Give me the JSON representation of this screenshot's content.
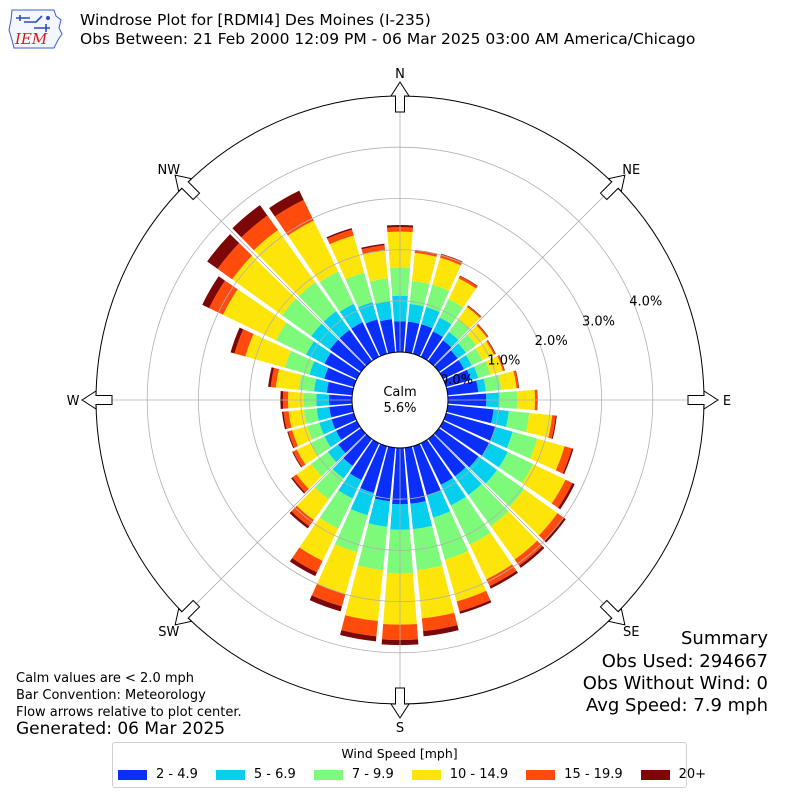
{
  "header": {
    "title_line1": "Windrose Plot for [RDMI4] Des Moines (I-235)",
    "title_line2": "Obs Between: 21 Feb 2000 12:09 PM - 06 Mar 2025 03:00 AM America/Chicago",
    "logo_text": "IEM"
  },
  "chart_data": {
    "type": "windrose",
    "directions": [
      "N",
      "NE",
      "E",
      "SE",
      "S",
      "SW",
      "W",
      "NW"
    ],
    "radial_ticks": [
      "0.0%",
      "1.0%",
      "2.0%",
      "3.0%",
      "4.0%"
    ],
    "radial_max_pct": 5.0,
    "grid": true,
    "calm_label": "Calm",
    "calm_value": "5.6%",
    "bin_labels": [
      "2 - 4.9",
      "5 - 6.9",
      "7 - 9.9",
      "10 - 14.9",
      "15 - 19.9",
      "20+"
    ],
    "bin_colors": [
      "#0a2ffa",
      "#05cfee",
      "#7dfa7a",
      "#fde50a",
      "#ff4b0c",
      "#7d0606"
    ],
    "sectors": [
      {
        "dir_deg": 0,
        "cumulative_pct": [
          0.6,
          1.1,
          1.65,
          2.35,
          2.44,
          2.48
        ]
      },
      {
        "dir_deg": 10,
        "cumulative_pct": [
          0.6,
          0.95,
          1.4,
          1.95,
          2.0,
          2.01
        ]
      },
      {
        "dir_deg": 20,
        "cumulative_pct": [
          0.6,
          0.95,
          1.4,
          1.95,
          2.02,
          2.03
        ]
      },
      {
        "dir_deg": 30,
        "cumulative_pct": [
          0.55,
          0.85,
          1.25,
          1.7,
          1.75,
          1.76
        ]
      },
      {
        "dir_deg": 40,
        "cumulative_pct": [
          0.5,
          0.7,
          1.0,
          1.3,
          1.33,
          1.34
        ]
      },
      {
        "dir_deg": 50,
        "cumulative_pct": [
          0.45,
          0.65,
          0.9,
          1.15,
          1.18,
          1.19
        ]
      },
      {
        "dir_deg": 60,
        "cumulative_pct": [
          0.45,
          0.62,
          0.85,
          1.1,
          1.13,
          1.14
        ]
      },
      {
        "dir_deg": 70,
        "cumulative_pct": [
          0.5,
          0.65,
          0.9,
          1.15,
          1.18,
          1.19
        ]
      },
      {
        "dir_deg": 80,
        "cumulative_pct": [
          0.6,
          0.75,
          1.05,
          1.35,
          1.39,
          1.4
        ]
      },
      {
        "dir_deg": 90,
        "cumulative_pct": [
          0.75,
          1.0,
          1.35,
          1.7,
          1.74,
          1.75
        ]
      },
      {
        "dir_deg": 100,
        "cumulative_pct": [
          0.9,
          1.2,
          1.6,
          2.05,
          2.12,
          2.14
        ]
      },
      {
        "dir_deg": 110,
        "cumulative_pct": [
          1.0,
          1.35,
          1.85,
          2.4,
          2.55,
          2.58
        ]
      },
      {
        "dir_deg": 120,
        "cumulative_pct": [
          1.0,
          1.4,
          1.95,
          2.65,
          2.8,
          2.85
        ]
      },
      {
        "dir_deg": 130,
        "cumulative_pct": [
          0.95,
          1.4,
          2.05,
          2.85,
          3.0,
          3.05
        ]
      },
      {
        "dir_deg": 140,
        "cumulative_pct": [
          0.9,
          1.35,
          2.1,
          2.9,
          3.05,
          3.1
        ]
      },
      {
        "dir_deg": 150,
        "cumulative_pct": [
          0.9,
          1.35,
          2.2,
          2.95,
          3.1,
          3.15
        ]
      },
      {
        "dir_deg": 160,
        "cumulative_pct": [
          1.0,
          1.45,
          2.3,
          3.15,
          3.35,
          3.4
        ]
      },
      {
        "dir_deg": 170,
        "cumulative_pct": [
          1.1,
          1.6,
          2.4,
          3.35,
          3.6,
          3.7
        ]
      },
      {
        "dir_deg": 180,
        "cumulative_pct": [
          1.1,
          1.6,
          2.45,
          3.45,
          3.75,
          3.85
        ]
      },
      {
        "dir_deg": 190,
        "cumulative_pct": [
          1.05,
          1.55,
          2.4,
          3.4,
          3.7,
          3.8
        ]
      },
      {
        "dir_deg": 200,
        "cumulative_pct": [
          0.95,
          1.4,
          2.15,
          3.0,
          3.25,
          3.35
        ]
      },
      {
        "dir_deg": 210,
        "cumulative_pct": [
          0.8,
          1.2,
          1.85,
          2.55,
          2.8,
          2.88
        ]
      },
      {
        "dir_deg": 220,
        "cumulative_pct": [
          0.65,
          0.95,
          1.45,
          1.95,
          2.1,
          2.15
        ]
      },
      {
        "dir_deg": 230,
        "cumulative_pct": [
          0.55,
          0.8,
          1.2,
          1.55,
          1.65,
          1.68
        ]
      },
      {
        "dir_deg": 240,
        "cumulative_pct": [
          0.45,
          0.7,
          1.0,
          1.3,
          1.38,
          1.4
        ]
      },
      {
        "dir_deg": 250,
        "cumulative_pct": [
          0.45,
          0.7,
          0.95,
          1.25,
          1.33,
          1.35
        ]
      },
      {
        "dir_deg": 260,
        "cumulative_pct": [
          0.45,
          0.7,
          0.95,
          1.25,
          1.35,
          1.38
        ]
      },
      {
        "dir_deg": 270,
        "cumulative_pct": [
          0.45,
          0.7,
          0.95,
          1.25,
          1.35,
          1.4
        ]
      },
      {
        "dir_deg": 280,
        "cumulative_pct": [
          0.5,
          0.75,
          1.05,
          1.5,
          1.6,
          1.65
        ]
      },
      {
        "dir_deg": 290,
        "cumulative_pct": [
          0.6,
          0.9,
          1.4,
          2.2,
          2.42,
          2.5
        ]
      },
      {
        "dir_deg": 300,
        "cumulative_pct": [
          0.7,
          1.1,
          1.75,
          2.9,
          3.2,
          3.35
        ]
      },
      {
        "dir_deg": 310,
        "cumulative_pct": [
          0.75,
          1.2,
          1.9,
          3.1,
          3.45,
          3.7
        ]
      },
      {
        "dir_deg": 320,
        "cumulative_pct": [
          0.75,
          1.2,
          1.9,
          3.15,
          3.5,
          3.75
        ]
      },
      {
        "dir_deg": 330,
        "cumulative_pct": [
          0.75,
          1.15,
          1.85,
          2.95,
          3.4,
          3.6
        ]
      },
      {
        "dir_deg": 340,
        "cumulative_pct": [
          0.7,
          1.05,
          1.65,
          2.4,
          2.52,
          2.55
        ]
      },
      {
        "dir_deg": 350,
        "cumulative_pct": [
          0.65,
          1.0,
          1.45,
          2.0,
          2.1,
          2.13
        ]
      }
    ]
  },
  "summary": {
    "heading": "Summary",
    "obs_used": "Obs Used: 294667",
    "obs_without_wind": "Obs Without Wind: 0",
    "avg_speed": "Avg Speed: 7.9 mph"
  },
  "footer": {
    "calm_note": "Calm values are < 2.0 mph",
    "bar_convention": "Bar Convention: Meteorology",
    "flow_note": "Flow arrows relative to plot center.",
    "generated": "Generated: 06 Mar 2025"
  },
  "legend": {
    "title": "Wind Speed [mph]"
  }
}
